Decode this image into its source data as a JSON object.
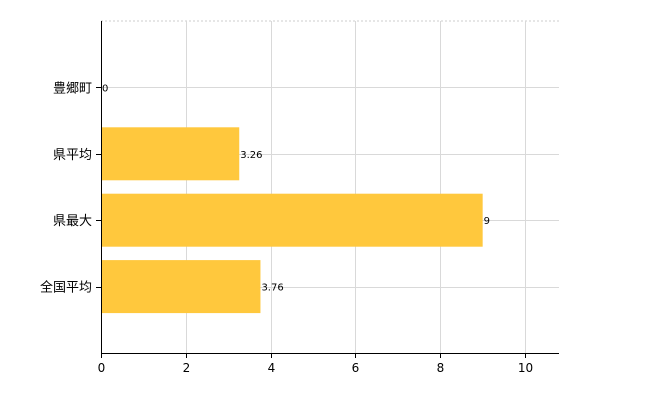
{
  "chart_data": {
    "type": "bar",
    "orientation": "horizontal",
    "categories": [
      "豊郷町",
      "県平均",
      "県最大",
      "全国平均"
    ],
    "values": [
      0,
      3.26,
      9,
      3.76
    ],
    "value_labels": [
      "0",
      "3.26",
      "9",
      "3.76"
    ],
    "xlim": [
      0,
      10.8
    ],
    "xticks": [
      0,
      2,
      4,
      6,
      8,
      10
    ],
    "xtick_labels": [
      "0",
      "2",
      "4",
      "6",
      "8",
      "10"
    ],
    "bar_color": "#FFC83D",
    "grid": true,
    "legend": "none"
  }
}
